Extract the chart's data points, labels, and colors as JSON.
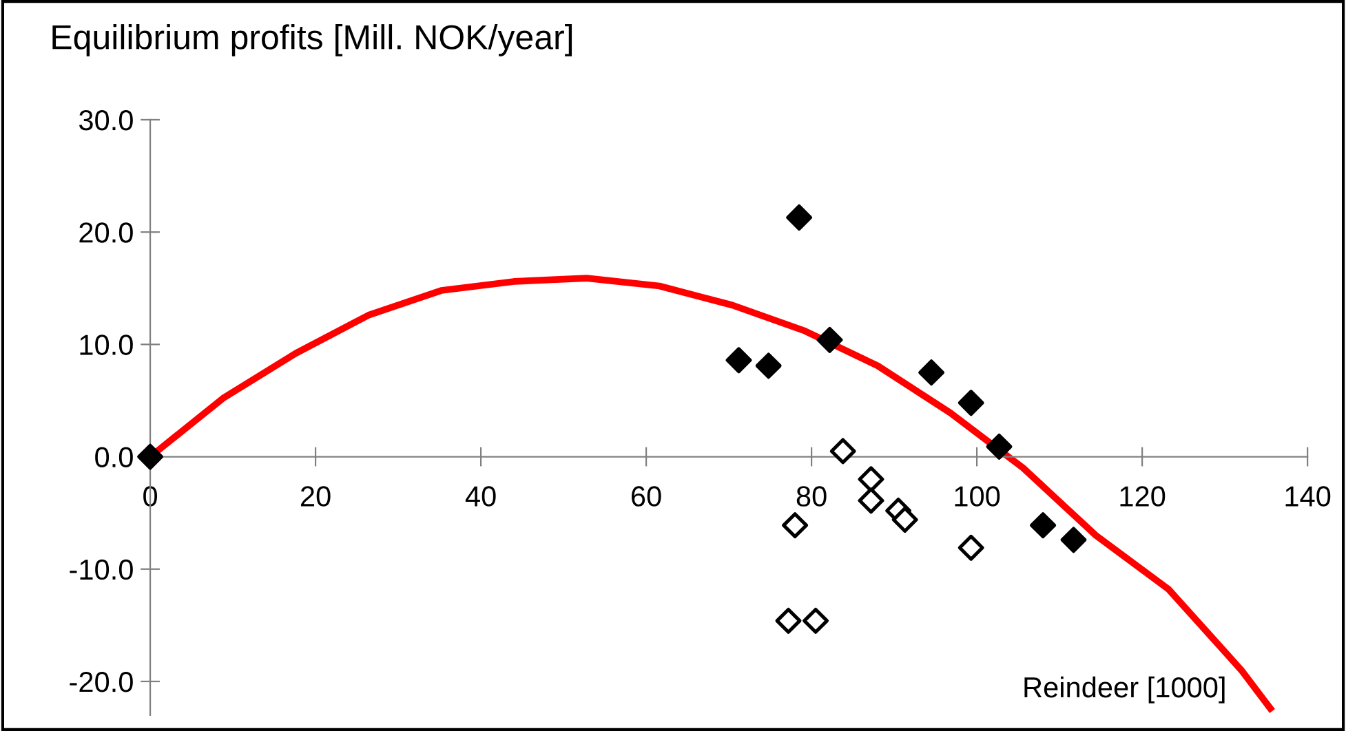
{
  "chart_data": {
    "type": "scatter",
    "ylabel": "Equilibrium profits [Mill. NOK/year]",
    "xlabel": "Reindeer [1000]",
    "xlim": [
      0,
      140
    ],
    "xticks": [
      0,
      20,
      40,
      60,
      80,
      100,
      120,
      140
    ],
    "ylim": [
      -23,
      30
    ],
    "yticks": [
      {
        "value": -20,
        "label": "-20.0"
      },
      {
        "value": -10,
        "label": "-10.0"
      },
      {
        "value": 0,
        "label": "0.0"
      },
      {
        "value": 10,
        "label": "10.0"
      },
      {
        "value": 20,
        "label": "20.0"
      },
      {
        "value": 30,
        "label": "30.0"
      }
    ],
    "grid": false,
    "legend": false,
    "series": [
      {
        "type": "line",
        "color": "#ff0000",
        "marker": "none",
        "line_style": "solid",
        "x": [
          0,
          8.8,
          17.6,
          26.4,
          35.2,
          44,
          52.8,
          61.6,
          70.4,
          79.2,
          88,
          96.8,
          105.6,
          114.4,
          123.2,
          132,
          135.5
        ],
        "values": [
          0,
          5.2,
          9.2,
          12.6,
          14.8,
          15.6,
          15.9,
          15.2,
          13.5,
          11.2,
          8.1,
          3.9,
          -1.0,
          -7.0,
          -11.8,
          -19.0,
          -22.4
        ]
      },
      {
        "color": "#000000",
        "marker": "diamond",
        "x": [
          0,
          71.2,
          74.8,
          78.5,
          82.2,
          94.5,
          99.3,
          102.7,
          108,
          111.7
        ],
        "values": [
          0,
          8.6,
          8.1,
          21.3,
          10.4,
          7.5,
          4.8,
          0.9,
          -6.1,
          -7.4
        ]
      },
      {
        "color": "#ffffff",
        "marker": "diamond",
        "x": [
          77.2,
          78,
          80.5,
          83.8,
          87.2,
          87.2,
          90.5,
          91.3,
          99.3
        ],
        "values": [
          -14.6,
          -6.1,
          -14.6,
          0.5,
          -2.0,
          -3.9,
          -4.8,
          -5.6,
          -8.1
        ]
      }
    ]
  }
}
